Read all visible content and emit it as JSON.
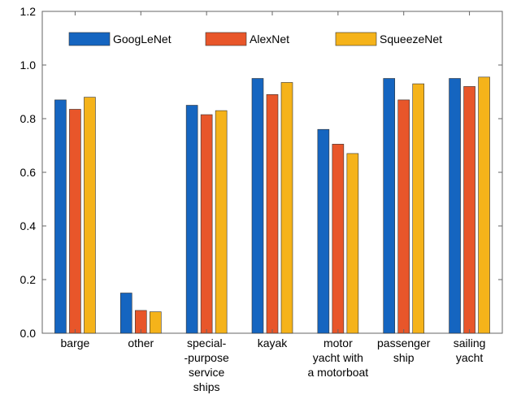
{
  "chart_data": {
    "type": "bar",
    "title": "",
    "xlabel": "",
    "ylabel": "",
    "ylim": [
      0,
      1.2
    ],
    "yticks": [
      "0.0",
      "0.2",
      "0.4",
      "0.6",
      "0.8",
      "1.0",
      "1.2"
    ],
    "grid": false,
    "legend_position": "top",
    "categories": [
      [
        "barge"
      ],
      [
        "other"
      ],
      [
        "special-",
        "-purpose",
        "service",
        "ships"
      ],
      [
        "kayak"
      ],
      [
        "motor",
        "yacht with",
        "a motorboat"
      ],
      [
        "passenger",
        "ship"
      ],
      [
        "sailing",
        "yacht"
      ]
    ],
    "series": [
      {
        "name": "GoogLeNet",
        "color": "#1565c0",
        "values": [
          0.87,
          0.15,
          0.85,
          0.95,
          0.76,
          0.95,
          0.95
        ]
      },
      {
        "name": "AlexNet",
        "color": "#e8562a",
        "values": [
          0.835,
          0.085,
          0.815,
          0.89,
          0.705,
          0.87,
          0.92
        ]
      },
      {
        "name": "SqueezeNet",
        "color": "#f5b31a",
        "values": [
          0.88,
          0.08,
          0.83,
          0.935,
          0.67,
          0.93,
          0.955
        ]
      }
    ]
  }
}
